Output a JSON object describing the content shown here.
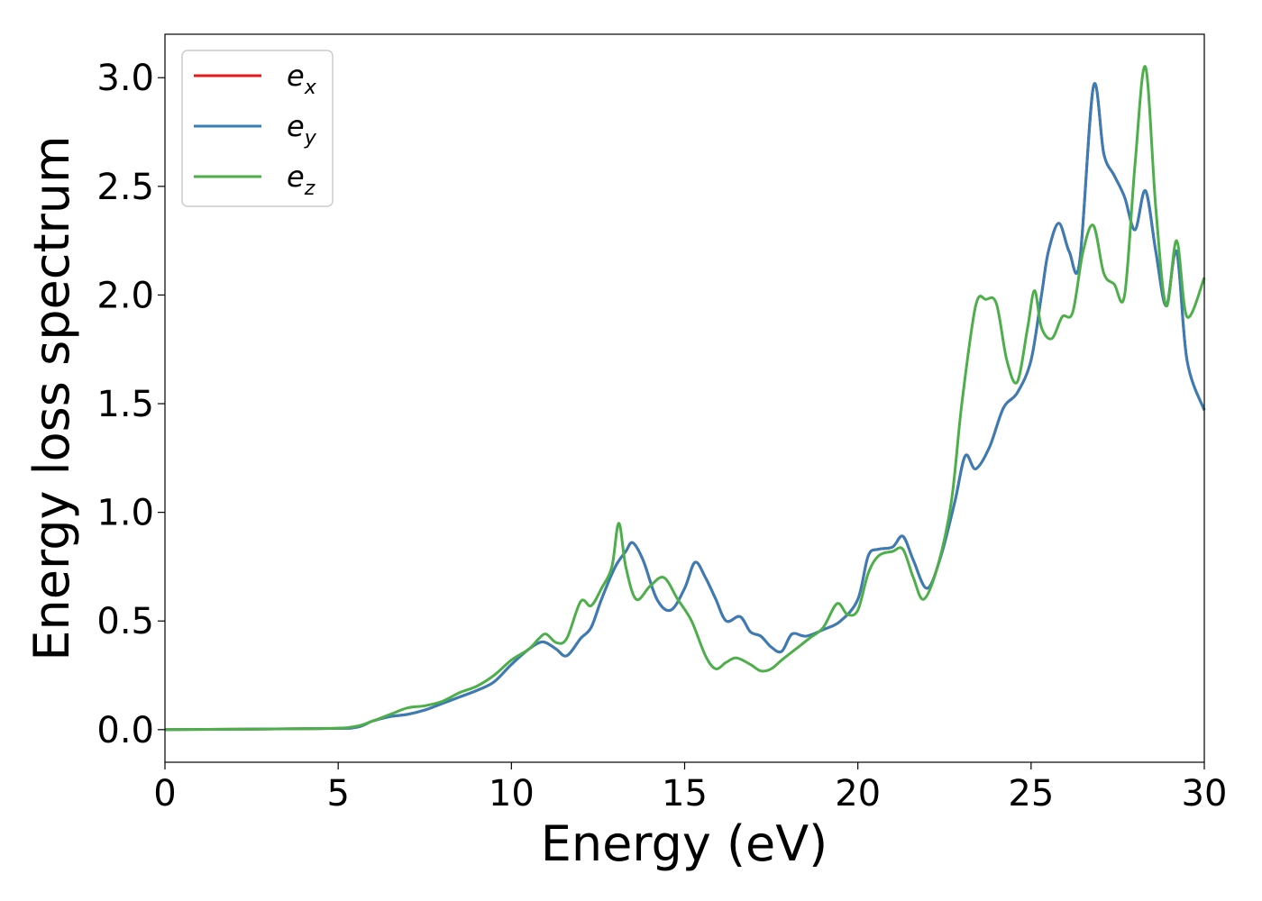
{
  "chart_data": {
    "type": "line",
    "title": "",
    "xlabel": "Energy (eV)",
    "ylabel": "Energy loss spectrum",
    "xlim": [
      0,
      30
    ],
    "ylim": [
      -0.15,
      3.2
    ],
    "xticks": [
      "0",
      "5",
      "10",
      "15",
      "20",
      "25",
      "30"
    ],
    "yticks": [
      "0.0",
      "0.5",
      "1.0",
      "1.5",
      "2.0",
      "2.5",
      "3.0"
    ],
    "grid": false,
    "legend_position": "top-left",
    "series": [
      {
        "name": "e",
        "subscript": "x",
        "color": "#e41a1c",
        "x": [
          0,
          4.5,
          5.5,
          6,
          6.5,
          7,
          7.5,
          8,
          8.5,
          9,
          9.5,
          10,
          10.5,
          10.8,
          11,
          11.3,
          11.6,
          12,
          12.3,
          12.6,
          13,
          13.3,
          13.5,
          13.8,
          14.2,
          14.6,
          15,
          15.3,
          15.6,
          15.9,
          16.2,
          16.6,
          16.9,
          17.2,
          17.5,
          17.8,
          18.1,
          18.5,
          19,
          19.5,
          20,
          20.3,
          20.6,
          21,
          21.3,
          21.6,
          22,
          22.4,
          22.8,
          23.1,
          23.4,
          23.8,
          24.2,
          24.6,
          25,
          25.3,
          25.5,
          25.8,
          26.1,
          26.4,
          26.8,
          27.1,
          27.4,
          27.7,
          28,
          28.3,
          28.6,
          28.9,
          29.2,
          29.5,
          30
        ],
        "values": [
          0,
          0.005,
          0.01,
          0.04,
          0.06,
          0.07,
          0.09,
          0.12,
          0.15,
          0.18,
          0.22,
          0.3,
          0.37,
          0.4,
          0.4,
          0.37,
          0.34,
          0.42,
          0.47,
          0.6,
          0.75,
          0.82,
          0.86,
          0.78,
          0.6,
          0.55,
          0.65,
          0.77,
          0.7,
          0.6,
          0.5,
          0.52,
          0.45,
          0.43,
          0.38,
          0.36,
          0.44,
          0.43,
          0.46,
          0.5,
          0.6,
          0.8,
          0.83,
          0.84,
          0.89,
          0.78,
          0.65,
          0.8,
          1.05,
          1.26,
          1.2,
          1.3,
          1.48,
          1.55,
          1.7,
          2.0,
          2.2,
          2.33,
          2.2,
          2.15,
          2.96,
          2.65,
          2.55,
          2.45,
          2.3,
          2.48,
          2.2,
          1.95,
          2.2,
          1.7,
          1.47
        ]
      },
      {
        "name": "e",
        "subscript": "y",
        "color": "#377eb8",
        "x": [
          0,
          4.5,
          5.5,
          6,
          6.5,
          7,
          7.5,
          8,
          8.5,
          9,
          9.5,
          10,
          10.5,
          10.8,
          11,
          11.3,
          11.6,
          12,
          12.3,
          12.6,
          13,
          13.3,
          13.5,
          13.8,
          14.2,
          14.6,
          15,
          15.3,
          15.6,
          15.9,
          16.2,
          16.6,
          16.9,
          17.2,
          17.5,
          17.8,
          18.1,
          18.5,
          19,
          19.5,
          20,
          20.3,
          20.6,
          21,
          21.3,
          21.6,
          22,
          22.4,
          22.8,
          23.1,
          23.4,
          23.8,
          24.2,
          24.6,
          25,
          25.3,
          25.5,
          25.8,
          26.1,
          26.4,
          26.8,
          27.1,
          27.4,
          27.7,
          28,
          28.3,
          28.6,
          28.9,
          29.2,
          29.5,
          30
        ],
        "values": [
          0,
          0.005,
          0.01,
          0.04,
          0.06,
          0.07,
          0.09,
          0.12,
          0.15,
          0.18,
          0.22,
          0.3,
          0.37,
          0.4,
          0.4,
          0.37,
          0.34,
          0.42,
          0.47,
          0.6,
          0.75,
          0.82,
          0.86,
          0.78,
          0.6,
          0.55,
          0.65,
          0.77,
          0.7,
          0.6,
          0.5,
          0.52,
          0.45,
          0.43,
          0.38,
          0.36,
          0.44,
          0.43,
          0.46,
          0.5,
          0.6,
          0.8,
          0.83,
          0.84,
          0.89,
          0.78,
          0.65,
          0.8,
          1.05,
          1.26,
          1.2,
          1.3,
          1.48,
          1.55,
          1.7,
          2.0,
          2.2,
          2.33,
          2.2,
          2.15,
          2.96,
          2.65,
          2.55,
          2.45,
          2.3,
          2.48,
          2.2,
          1.95,
          2.2,
          1.7,
          1.47
        ]
      },
      {
        "name": "e",
        "subscript": "z",
        "color": "#4daf4a",
        "x": [
          0,
          4.5,
          5.5,
          6,
          6.5,
          7,
          7.5,
          8,
          8.5,
          9,
          9.5,
          10,
          10.5,
          10.8,
          11,
          11.3,
          11.6,
          12,
          12.3,
          12.6,
          12.9,
          13.1,
          13.3,
          13.6,
          14,
          14.4,
          14.8,
          15.2,
          15.6,
          15.9,
          16.2,
          16.5,
          16.9,
          17.2,
          17.5,
          17.8,
          18.2,
          18.6,
          19,
          19.4,
          19.7,
          20,
          20.3,
          20.6,
          21,
          21.3,
          21.6,
          21.9,
          22.3,
          22.7,
          23,
          23.4,
          23.7,
          24,
          24.3,
          24.6,
          24.9,
          25.1,
          25.3,
          25.6,
          25.9,
          26.2,
          26.5,
          26.8,
          27.1,
          27.4,
          27.7,
          28,
          28.3,
          28.6,
          28.9,
          29.2,
          29.5,
          30
        ],
        "values": [
          0,
          0.005,
          0.015,
          0.04,
          0.07,
          0.1,
          0.11,
          0.13,
          0.17,
          0.2,
          0.25,
          0.32,
          0.37,
          0.42,
          0.44,
          0.4,
          0.42,
          0.59,
          0.57,
          0.65,
          0.75,
          0.95,
          0.75,
          0.6,
          0.66,
          0.7,
          0.6,
          0.5,
          0.34,
          0.28,
          0.31,
          0.33,
          0.3,
          0.27,
          0.28,
          0.32,
          0.37,
          0.42,
          0.47,
          0.58,
          0.53,
          0.55,
          0.72,
          0.8,
          0.82,
          0.83,
          0.7,
          0.6,
          0.75,
          1.05,
          1.5,
          1.95,
          1.98,
          1.96,
          1.7,
          1.6,
          1.85,
          2.02,
          1.85,
          1.8,
          1.9,
          1.92,
          2.2,
          2.32,
          2.1,
          2.05,
          2.0,
          2.6,
          3.05,
          2.4,
          1.95,
          2.25,
          1.9,
          2.08
        ]
      }
    ]
  }
}
